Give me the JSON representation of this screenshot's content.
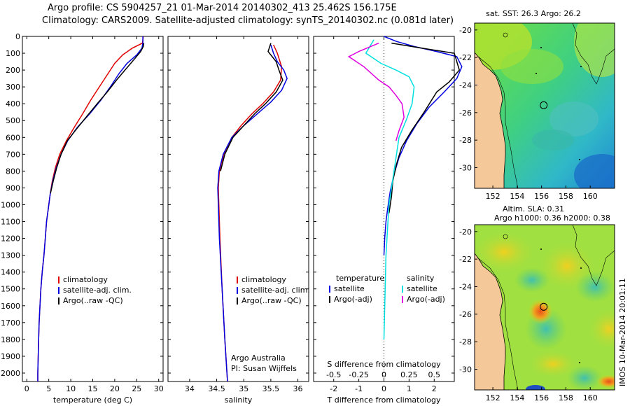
{
  "header": {
    "line1": "Argo profile: CS 5904257_21 01-Mar-2014 20140302_413 25.462S 156.175E",
    "line2": "Climatology: CARS2009. Satellite-adjusted climatology: synTS_20140302.nc (0.081d later)"
  },
  "colors": {
    "clim": "#e00000",
    "sat": "#0000e0",
    "argo": "#000000",
    "sal_sat": "#00e0e0",
    "sal_argo": "#e000e0",
    "land": "#f5c89a"
  },
  "chart_data": [
    {
      "type": "line",
      "id": "temp",
      "xlabel": "temperature (deg C)",
      "xlim": [
        -1,
        31
      ],
      "xticks": [
        0,
        5,
        10,
        15,
        20,
        25,
        30
      ],
      "ylim": [
        0,
        2050
      ],
      "yticks": [
        0,
        100,
        200,
        300,
        400,
        500,
        600,
        700,
        800,
        900,
        1000,
        1100,
        1200,
        1300,
        1400,
        1500,
        1600,
        1700,
        1800,
        1900,
        2000
      ],
      "legend": [
        "climatology",
        "satellite-adj. clim.",
        "Argo(..raw -QC)"
      ],
      "series": [
        {
          "name": "climatology",
          "color": "clim",
          "x": [
            26.5,
            26.3,
            24,
            21.8,
            20,
            18.5,
            16.5,
            14.5,
            12.7,
            10.8,
            9,
            7.5,
            6.5,
            5.8,
            5.3,
            4.9,
            4.5,
            4.2,
            3.9,
            3.5,
            3.2,
            3,
            2.8,
            2.7,
            2.6,
            2.5,
            2.5
          ],
          "y": [
            0,
            40,
            70,
            110,
            160,
            220,
            300,
            380,
            460,
            540,
            620,
            700,
            780,
            860,
            940,
            1020,
            1100,
            1200,
            1300,
            1400,
            1500,
            1600,
            1700,
            1800,
            1900,
            2000,
            2050
          ]
        },
        {
          "name": "satellite-adj. clim.",
          "color": "sat",
          "x": [
            26.4,
            26.4,
            26.2,
            25,
            22.8,
            21,
            19,
            16.8,
            14.3,
            11.5,
            9.3,
            7.8,
            6.7,
            5.9,
            5.3,
            4.9,
            4.5,
            4.2,
            3.9,
            3.5,
            3.2,
            3,
            2.8,
            2.7,
            2.6,
            2.5,
            2.5
          ],
          "y": [
            0,
            40,
            70,
            110,
            160,
            220,
            300,
            380,
            460,
            540,
            620,
            700,
            780,
            860,
            940,
            1020,
            1100,
            1200,
            1300,
            1400,
            1500,
            1600,
            1700,
            1800,
            1900,
            2000,
            2050
          ]
        },
        {
          "name": "Argo(..raw -QC)",
          "color": "argo",
          "x": [
            26.6,
            26.5,
            25.9,
            24.3,
            22,
            20.4,
            18.3,
            16,
            13.8,
            11.3,
            9.2,
            7.8,
            6.8,
            6,
            5.4
          ],
          "y": [
            40,
            60,
            90,
            140,
            210,
            260,
            330,
            400,
            470,
            550,
            620,
            700,
            780,
            860,
            930
          ]
        }
      ]
    },
    {
      "type": "line",
      "id": "sal",
      "xlabel": "salinity",
      "xlim": [
        33.6,
        36.2
      ],
      "xticks": [
        34,
        34.5,
        35,
        35.5,
        36
      ],
      "xtick_labels": [
        "34",
        "34.5",
        "35",
        "35.5",
        "36"
      ],
      "ylim": [
        0,
        2050
      ],
      "legend": [
        "climatology",
        "satellite-adj. clim.",
        "Argo(..raw -QC)"
      ],
      "annotation": [
        "Argo Australia",
        "PI: Susan Wijffels"
      ],
      "series": [
        {
          "name": "climatology",
          "color": "clim",
          "x": [
            35.55,
            35.62,
            35.7,
            35.68,
            35.55,
            35.35,
            35.15,
            34.95,
            34.78,
            34.63,
            34.55,
            34.53,
            34.56,
            34.6,
            34.65,
            34.7
          ],
          "y": [
            50,
            100,
            180,
            260,
            330,
            400,
            460,
            530,
            600,
            700,
            800,
            900,
            1200,
            1500,
            1800,
            2050
          ]
        },
        {
          "name": "satellite-adj. clim.",
          "color": "sat",
          "x": [
            35.5,
            35.55,
            35.62,
            35.74,
            35.8,
            35.7,
            35.5,
            35.25,
            35,
            34.78,
            34.62,
            34.54,
            34.52,
            34.55,
            34.6,
            34.65,
            34.7
          ],
          "y": [
            50,
            100,
            150,
            200,
            250,
            320,
            390,
            460,
            530,
            600,
            700,
            800,
            900,
            1200,
            1500,
            1800,
            2050
          ]
        },
        {
          "name": "Argo(..raw -QC)",
          "color": "argo",
          "x": [
            35.5,
            35.45,
            35.6,
            35.65,
            35.72,
            35.6,
            35.4,
            35.2,
            35,
            34.8,
            34.65,
            34.57
          ],
          "y": [
            40,
            90,
            150,
            200,
            260,
            330,
            400,
            460,
            530,
            600,
            700,
            800
          ]
        }
      ]
    },
    {
      "type": "line",
      "id": "diff",
      "xlabel": "T difference from climatology",
      "xlabel_top": "S difference from climatology",
      "xlim": [
        -2.8,
        2.8
      ],
      "xticks": [
        -2,
        -1,
        0,
        1,
        2
      ],
      "top_ticks": [
        "-0.5",
        "-0.25",
        "0",
        "0.25",
        "0.5"
      ],
      "ylim": [
        0,
        2050
      ],
      "legend_left_title": "temperature",
      "legend_right_title": "salinity",
      "legend_left": [
        "satellite",
        "Argo(-adj)"
      ],
      "legend_right": [
        "satellite",
        "Argo(-adj)"
      ],
      "series": [
        {
          "name": "T satellite",
          "color": "sat",
          "x": [
            0,
            0.5,
            1.2,
            2.1,
            2.9,
            3.1,
            2.9,
            2.4,
            1.8,
            1.3,
            0.9,
            0.6,
            0.4,
            0.25,
            0.15,
            0.08,
            0.03,
            0
          ],
          "y": [
            0,
            30,
            60,
            90,
            120,
            180,
            250,
            330,
            420,
            520,
            620,
            720,
            820,
            920,
            1020,
            1100,
            1200,
            1300
          ]
        },
        {
          "name": "T Argo(-adj)",
          "color": "argo",
          "x": [
            0.3,
            1.5,
            2.8,
            3,
            2.6,
            2.1,
            1.6,
            1.1,
            0.7,
            0.5,
            0.35,
            0.3,
            0.2
          ],
          "y": [
            40,
            70,
            100,
            200,
            270,
            330,
            450,
            560,
            660,
            760,
            860,
            950,
            1050
          ]
        },
        {
          "name": "S satellite",
          "color": "sal_sat",
          "x": [
            -0.1,
            -0.18,
            -0.03,
            0.12,
            0.25,
            0.3,
            0.28,
            0.22,
            0.15,
            0.1,
            0.05,
            0.02,
            0
          ],
          "y": [
            20,
            100,
            160,
            200,
            240,
            300,
            400,
            500,
            600,
            800,
            1000,
            1300,
            1800
          ]
        },
        {
          "name": "S Argo(-adj)",
          "color": "sal_argo",
          "x": [
            -0.05,
            -0.25,
            -0.35,
            -0.2,
            -0.05,
            0.05,
            0.12,
            0.18,
            0.2,
            0.15,
            0.12
          ],
          "y": [
            40,
            90,
            120,
            180,
            260,
            300,
            350,
            400,
            480,
            560,
            620
          ]
        }
      ]
    },
    {
      "type": "heatmap",
      "id": "sst_map",
      "title": "sat. SST: 26.3 Argo: 26.2",
      "xticks": [
        "152",
        "154",
        "156",
        "158",
        "160"
      ],
      "yticks": [
        "-20",
        "-22",
        "-24",
        "-26",
        "-28",
        "-30"
      ],
      "xlim": [
        150.5,
        162
      ],
      "ylim": [
        -31.5,
        -19.5
      ],
      "argo_position": [
        156.175,
        -25.462
      ]
    },
    {
      "type": "heatmap",
      "id": "sla_map",
      "title_line1": "Altim. SLA: 0.31",
      "title_line2": "Argo h1000: 0.36 h2000: 0.38",
      "xticks": [
        "152",
        "154",
        "156",
        "158",
        "160"
      ],
      "yticks": [
        "-20",
        "-22",
        "-24",
        "-26",
        "-28",
        "-30"
      ],
      "xlim": [
        150.5,
        162
      ],
      "ylim": [
        -31.5,
        -19.5
      ],
      "argo_position": [
        156.175,
        -25.462
      ]
    }
  ],
  "imos_stamp": "IMOS 10-Mar-2014 20:01:11"
}
